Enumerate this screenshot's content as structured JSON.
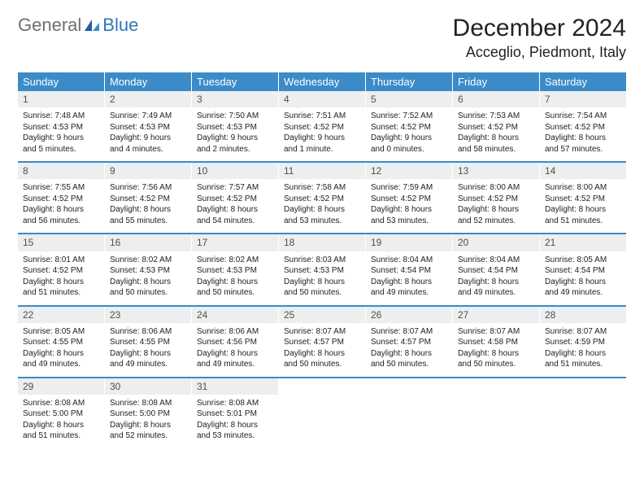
{
  "colors": {
    "header_bg": "#3b8bc8",
    "header_text": "#ffffff",
    "daynum_bg": "#eceeef",
    "daynum_text": "#505050",
    "body_text": "#222222",
    "row_border": "#3b8bc8",
    "logo_gray": "#6f6f6f",
    "logo_blue": "#2e77b8",
    "page_bg": "#ffffff"
  },
  "typography": {
    "month_title_fontsize": 30,
    "location_fontsize": 18,
    "dow_fontsize": 13,
    "daynum_fontsize": 12,
    "body_fontsize": 10,
    "font_family": "Arial"
  },
  "logo": {
    "text1": "General",
    "text2": "Blue"
  },
  "title": "December 2024",
  "location": "Acceglio, Piedmont, Italy",
  "days_of_week": [
    "Sunday",
    "Monday",
    "Tuesday",
    "Wednesday",
    "Thursday",
    "Friday",
    "Saturday"
  ],
  "weeks": [
    [
      {
        "n": "1",
        "sr": "Sunrise: 7:48 AM",
        "ss": "Sunset: 4:53 PM",
        "dl": "Daylight: 9 hours and 5 minutes."
      },
      {
        "n": "2",
        "sr": "Sunrise: 7:49 AM",
        "ss": "Sunset: 4:53 PM",
        "dl": "Daylight: 9 hours and 4 minutes."
      },
      {
        "n": "3",
        "sr": "Sunrise: 7:50 AM",
        "ss": "Sunset: 4:53 PM",
        "dl": "Daylight: 9 hours and 2 minutes."
      },
      {
        "n": "4",
        "sr": "Sunrise: 7:51 AM",
        "ss": "Sunset: 4:52 PM",
        "dl": "Daylight: 9 hours and 1 minute."
      },
      {
        "n": "5",
        "sr": "Sunrise: 7:52 AM",
        "ss": "Sunset: 4:52 PM",
        "dl": "Daylight: 9 hours and 0 minutes."
      },
      {
        "n": "6",
        "sr": "Sunrise: 7:53 AM",
        "ss": "Sunset: 4:52 PM",
        "dl": "Daylight: 8 hours and 58 minutes."
      },
      {
        "n": "7",
        "sr": "Sunrise: 7:54 AM",
        "ss": "Sunset: 4:52 PM",
        "dl": "Daylight: 8 hours and 57 minutes."
      }
    ],
    [
      {
        "n": "8",
        "sr": "Sunrise: 7:55 AM",
        "ss": "Sunset: 4:52 PM",
        "dl": "Daylight: 8 hours and 56 minutes."
      },
      {
        "n": "9",
        "sr": "Sunrise: 7:56 AM",
        "ss": "Sunset: 4:52 PM",
        "dl": "Daylight: 8 hours and 55 minutes."
      },
      {
        "n": "10",
        "sr": "Sunrise: 7:57 AM",
        "ss": "Sunset: 4:52 PM",
        "dl": "Daylight: 8 hours and 54 minutes."
      },
      {
        "n": "11",
        "sr": "Sunrise: 7:58 AM",
        "ss": "Sunset: 4:52 PM",
        "dl": "Daylight: 8 hours and 53 minutes."
      },
      {
        "n": "12",
        "sr": "Sunrise: 7:59 AM",
        "ss": "Sunset: 4:52 PM",
        "dl": "Daylight: 8 hours and 53 minutes."
      },
      {
        "n": "13",
        "sr": "Sunrise: 8:00 AM",
        "ss": "Sunset: 4:52 PM",
        "dl": "Daylight: 8 hours and 52 minutes."
      },
      {
        "n": "14",
        "sr": "Sunrise: 8:00 AM",
        "ss": "Sunset: 4:52 PM",
        "dl": "Daylight: 8 hours and 51 minutes."
      }
    ],
    [
      {
        "n": "15",
        "sr": "Sunrise: 8:01 AM",
        "ss": "Sunset: 4:52 PM",
        "dl": "Daylight: 8 hours and 51 minutes."
      },
      {
        "n": "16",
        "sr": "Sunrise: 8:02 AM",
        "ss": "Sunset: 4:53 PM",
        "dl": "Daylight: 8 hours and 50 minutes."
      },
      {
        "n": "17",
        "sr": "Sunrise: 8:02 AM",
        "ss": "Sunset: 4:53 PM",
        "dl": "Daylight: 8 hours and 50 minutes."
      },
      {
        "n": "18",
        "sr": "Sunrise: 8:03 AM",
        "ss": "Sunset: 4:53 PM",
        "dl": "Daylight: 8 hours and 50 minutes."
      },
      {
        "n": "19",
        "sr": "Sunrise: 8:04 AM",
        "ss": "Sunset: 4:54 PM",
        "dl": "Daylight: 8 hours and 49 minutes."
      },
      {
        "n": "20",
        "sr": "Sunrise: 8:04 AM",
        "ss": "Sunset: 4:54 PM",
        "dl": "Daylight: 8 hours and 49 minutes."
      },
      {
        "n": "21",
        "sr": "Sunrise: 8:05 AM",
        "ss": "Sunset: 4:54 PM",
        "dl": "Daylight: 8 hours and 49 minutes."
      }
    ],
    [
      {
        "n": "22",
        "sr": "Sunrise: 8:05 AM",
        "ss": "Sunset: 4:55 PM",
        "dl": "Daylight: 8 hours and 49 minutes."
      },
      {
        "n": "23",
        "sr": "Sunrise: 8:06 AM",
        "ss": "Sunset: 4:55 PM",
        "dl": "Daylight: 8 hours and 49 minutes."
      },
      {
        "n": "24",
        "sr": "Sunrise: 8:06 AM",
        "ss": "Sunset: 4:56 PM",
        "dl": "Daylight: 8 hours and 49 minutes."
      },
      {
        "n": "25",
        "sr": "Sunrise: 8:07 AM",
        "ss": "Sunset: 4:57 PM",
        "dl": "Daylight: 8 hours and 50 minutes."
      },
      {
        "n": "26",
        "sr": "Sunrise: 8:07 AM",
        "ss": "Sunset: 4:57 PM",
        "dl": "Daylight: 8 hours and 50 minutes."
      },
      {
        "n": "27",
        "sr": "Sunrise: 8:07 AM",
        "ss": "Sunset: 4:58 PM",
        "dl": "Daylight: 8 hours and 50 minutes."
      },
      {
        "n": "28",
        "sr": "Sunrise: 8:07 AM",
        "ss": "Sunset: 4:59 PM",
        "dl": "Daylight: 8 hours and 51 minutes."
      }
    ],
    [
      {
        "n": "29",
        "sr": "Sunrise: 8:08 AM",
        "ss": "Sunset: 5:00 PM",
        "dl": "Daylight: 8 hours and 51 minutes."
      },
      {
        "n": "30",
        "sr": "Sunrise: 8:08 AM",
        "ss": "Sunset: 5:00 PM",
        "dl": "Daylight: 8 hours and 52 minutes."
      },
      {
        "n": "31",
        "sr": "Sunrise: 8:08 AM",
        "ss": "Sunset: 5:01 PM",
        "dl": "Daylight: 8 hours and 53 minutes."
      },
      null,
      null,
      null,
      null
    ]
  ]
}
